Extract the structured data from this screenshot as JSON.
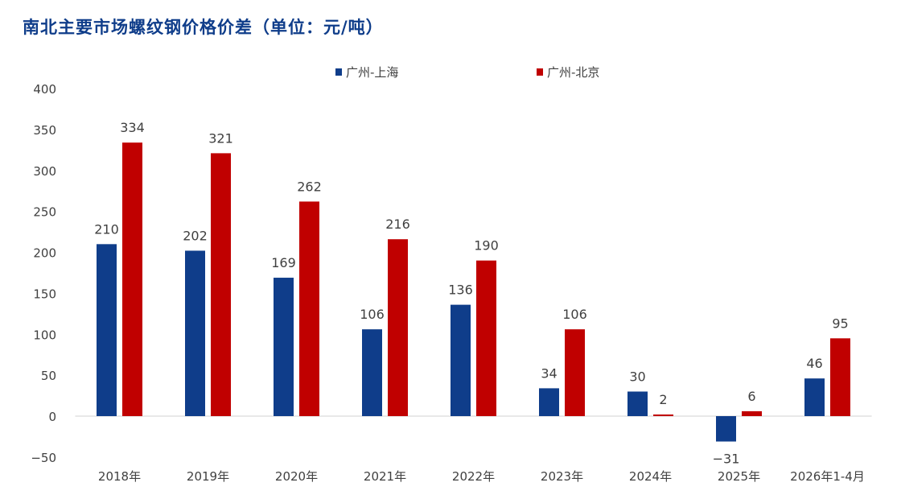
{
  "chart_data": {
    "type": "bar",
    "title": "南北主要市场螺纹钢价格价差（单位：元/吨）",
    "categories": [
      "2018年",
      "2019年",
      "2020年",
      "2021年",
      "2022年",
      "2023年",
      "2024年",
      "2025年",
      "2026年1-4月"
    ],
    "series": [
      {
        "name": "广州-上海",
        "color": "#0f3d8a",
        "values": [
          210,
          202,
          169,
          106,
          136,
          34,
          30,
          -31,
          46
        ]
      },
      {
        "name": "广州-北京",
        "color": "#c00000",
        "values": [
          334,
          321,
          262,
          216,
          190,
          106,
          2,
          6,
          95
        ]
      }
    ],
    "ylim": [
      -50,
      400
    ],
    "yticks": [
      -50,
      0,
      50,
      100,
      150,
      200,
      250,
      300,
      350,
      400
    ],
    "ytick_labels": [
      "-50",
      "0",
      "50",
      "100",
      "150",
      "200",
      "250",
      "300",
      "350",
      "400"
    ],
    "xlabel": "",
    "ylabel": "",
    "grid": false,
    "legend": "top-center",
    "data_labels": true
  }
}
